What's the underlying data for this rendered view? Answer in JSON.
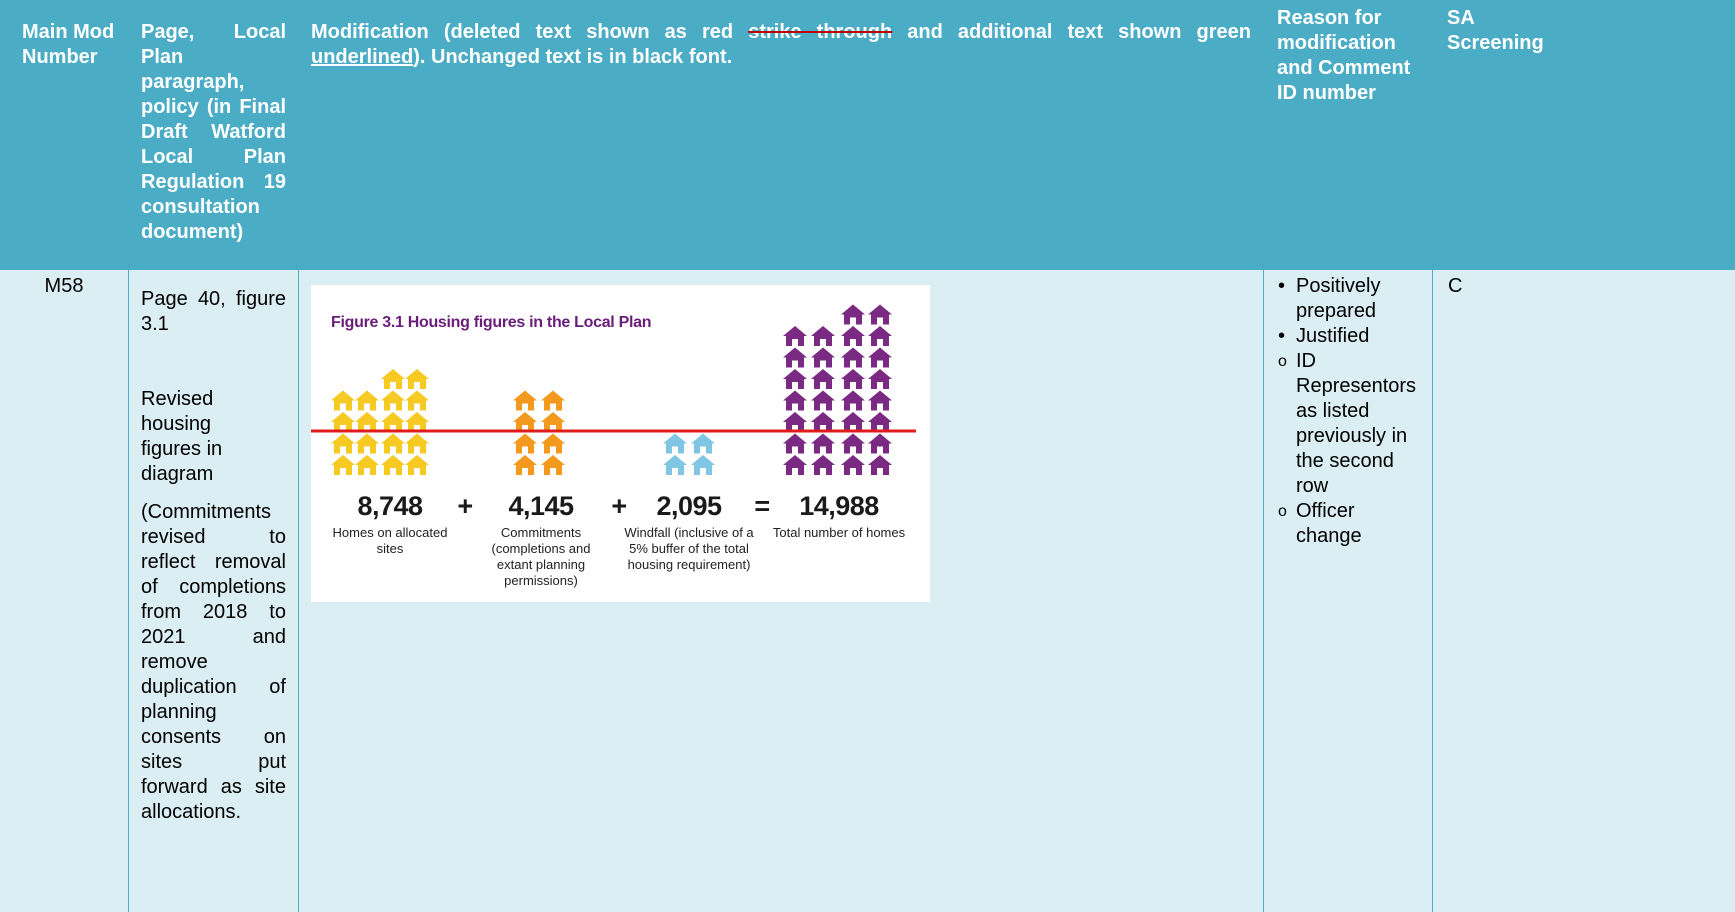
{
  "header": {
    "main_mod_number": "Main Mod Number",
    "page_paragraph_policy": "Page, Local Plan paragraph, policy (in Final Draft Watford Local Plan Regulation 19 consultation document)",
    "modification": [
      "Modification (deleted text shown as red ",
      "strike through",
      " and additional text shown green ",
      "underlined",
      "). Unchanged text is in black font."
    ],
    "reason": "Reason for modification and Comment ID number",
    "sa_screening": "SA Screening"
  },
  "rows": [
    {
      "mod_number": "M58",
      "page_paragraph": [
        "Page 40, figure 3.1",
        "Revised housing figures in diagram",
        "(Commitments revised to reflect removal of completions from 2018 to 2021 and remove duplication of planning consents on sites put forward as site allocations."
      ],
      "figure": {
        "title": "Figure 3.1 Housing figures in the Local Plan",
        "figures": [
          {
            "value": "8,748",
            "label": "Homes on allocated sites"
          },
          {
            "value": "4,145",
            "label": "Commitments (completions and extant planning permissions)"
          },
          {
            "value": "2,095",
            "label": "Windfall (inclusive of a 5% buffer of the total housing requirement)"
          },
          {
            "value": "14,988",
            "label": "Total number of homes"
          }
        ],
        "operators": [
          "+",
          "+",
          "="
        ]
      },
      "bullets": [
        "Positively prepared",
        "Justified"
      ],
      "sub_items": [
        "ID Representors as listed previously in the second row",
        "Officer change"
      ],
      "sa_screening": "C"
    }
  ]
}
